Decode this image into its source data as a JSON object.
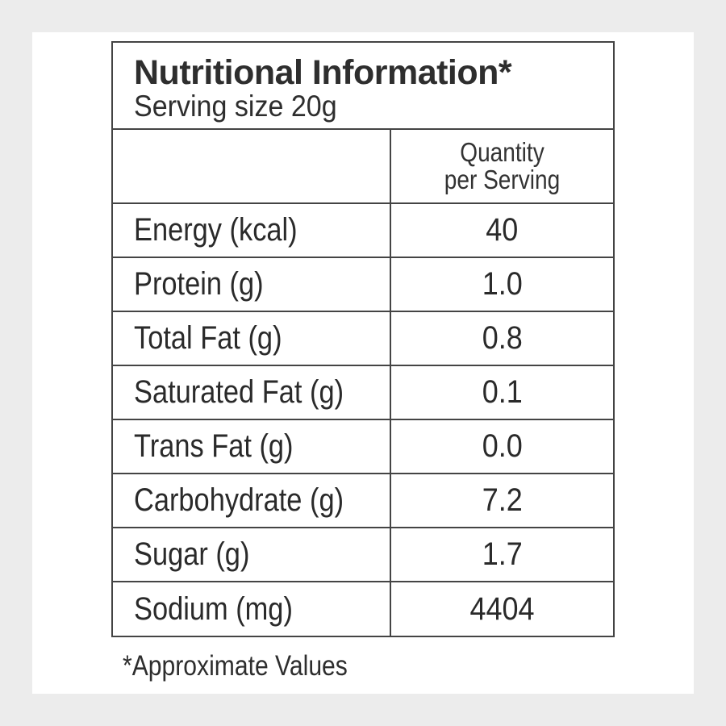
{
  "label": {
    "title": "Nutritional Information*",
    "serving_size": "Serving size 20g",
    "column_header": {
      "line1": "Quantity",
      "line2": "per Serving"
    },
    "rows": [
      {
        "name": "Energy (kcal)",
        "value": "40"
      },
      {
        "name": "Protein (g)",
        "value": "1.0"
      },
      {
        "name": "Total Fat (g)",
        "value": "0.8"
      },
      {
        "name": "Saturated Fat (g)",
        "value": "0.1"
      },
      {
        "name": "Trans Fat (g)",
        "value": "0.0"
      },
      {
        "name": "Carbohydrate (g)",
        "value": "7.2"
      },
      {
        "name": "Sugar (g)",
        "value": "1.7"
      },
      {
        "name": "Sodium (mg)",
        "value": "4404"
      }
    ],
    "footnote": "*Approximate Values"
  }
}
